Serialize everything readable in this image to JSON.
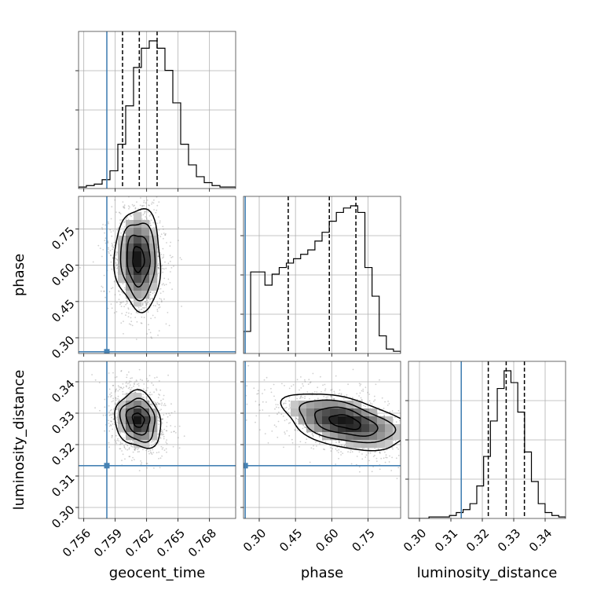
{
  "chart_data": {
    "type": "corner",
    "parameters": [
      {
        "name": "geocent_time",
        "label": "geocent_time",
        "range": [
          0.7555,
          0.7705
        ],
        "ticks": [
          0.756,
          0.759,
          0.762,
          0.765,
          0.768
        ],
        "tick_labels": [
          "0.756",
          "0.759",
          "0.762",
          "0.765",
          "0.768"
        ],
        "truth": 0.7582,
        "quantiles": [
          0.7597,
          0.7613,
          0.763
        ]
      },
      {
        "name": "phase",
        "label": "phase",
        "range": [
          0.235,
          0.885
        ],
        "ticks": [
          0.3,
          0.45,
          0.6,
          0.75
        ],
        "tick_labels": [
          "0.30",
          "0.45",
          "0.60",
          "0.75"
        ],
        "truth": 0.242,
        "quantiles": [
          0.42,
          0.59,
          0.7
        ]
      },
      {
        "name": "luminosity_distance",
        "label": "luminosity_distance",
        "range": [
          0.2965,
          0.3465
        ],
        "ticks": [
          0.3,
          0.31,
          0.32,
          0.33,
          0.34
        ],
        "tick_labels": [
          "0.30",
          "0.31",
          "0.32",
          "0.33",
          "0.34"
        ],
        "truth": 0.3133,
        "quantiles": [
          0.3219,
          0.3276,
          0.3334
        ]
      }
    ],
    "histograms": [
      {
        "param": "geocent_time",
        "counts": [
          1,
          2,
          3,
          6,
          12,
          30,
          56,
          82,
          95,
          100,
          95,
          80,
          58,
          30,
          16,
          8,
          4,
          2,
          1,
          1
        ]
      },
      {
        "param": "phase",
        "counts": [
          10,
          37,
          37,
          31,
          36,
          39,
          41,
          43,
          45,
          47,
          51,
          55,
          60,
          64,
          66,
          67,
          64,
          39,
          26,
          8,
          2,
          1
        ]
      },
      {
        "param": "luminosity_distance",
        "counts": [
          0,
          0,
          0,
          1,
          1,
          1,
          2,
          4,
          6,
          10,
          22,
          42,
          66,
          88,
          100,
          92,
          72,
          45,
          25,
          10,
          4,
          2,
          1
        ]
      }
    ],
    "joint": [
      {
        "x": "geocent_time",
        "y": "phase",
        "mean": [
          0.7612,
          0.625
        ],
        "sd": [
          0.0011,
          0.105
        ],
        "rho": -0.05
      },
      {
        "x": "geocent_time",
        "y": "luminosity_distance",
        "mean": [
          0.7612,
          0.3278
        ],
        "sd": [
          0.0011,
          0.0045
        ],
        "rho": -0.15
      },
      {
        "x": "phase",
        "y": "luminosity_distance",
        "mean": [
          0.655,
          0.3272
        ],
        "sd": [
          0.13,
          0.0045
        ],
        "rho": -0.45
      }
    ],
    "contour_levels": [
      0.5,
      1.0,
      1.5,
      2.0
    ],
    "truth_color": "#4682b4",
    "grid": true
  }
}
